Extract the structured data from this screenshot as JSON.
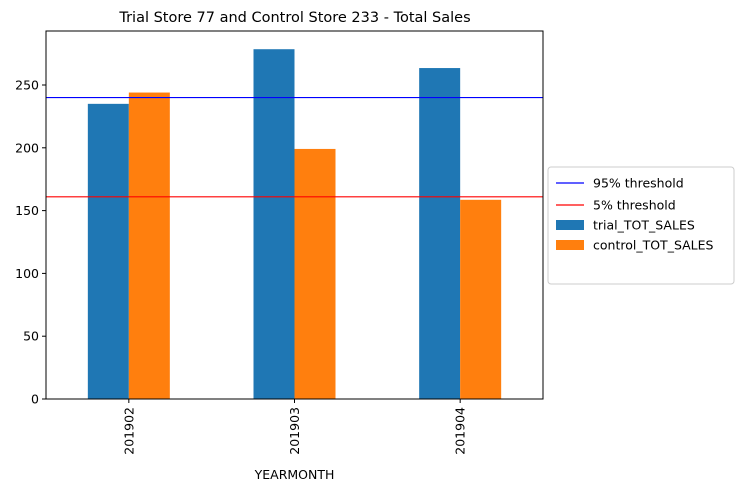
{
  "chart_data": {
    "type": "bar",
    "title": "Trial Store 77 and Control Store 233 - Total Sales",
    "xlabel": "YEARMONTH",
    "ylabel": "",
    "categories": [
      "201902",
      "201903",
      "201904"
    ],
    "series": [
      {
        "name": "trial_TOT_SALES",
        "values": [
          235.0,
          278.5,
          263.5
        ],
        "color": "#1f77b4"
      },
      {
        "name": "control_TOT_SALES",
        "values": [
          244.0,
          199.1,
          158.6
        ],
        "color": "#ff7f0e"
      }
    ],
    "thresholds": [
      {
        "name": "95% threshold",
        "value": 240.0,
        "color": "#0000ff"
      },
      {
        "name": "5% threshold",
        "value": 161.0,
        "color": "#ff0000"
      }
    ],
    "ylim": [
      0,
      293
    ],
    "yticks": [
      0,
      50,
      100,
      150,
      200,
      250
    ],
    "grid": false,
    "legend_position": "center-right outside"
  }
}
